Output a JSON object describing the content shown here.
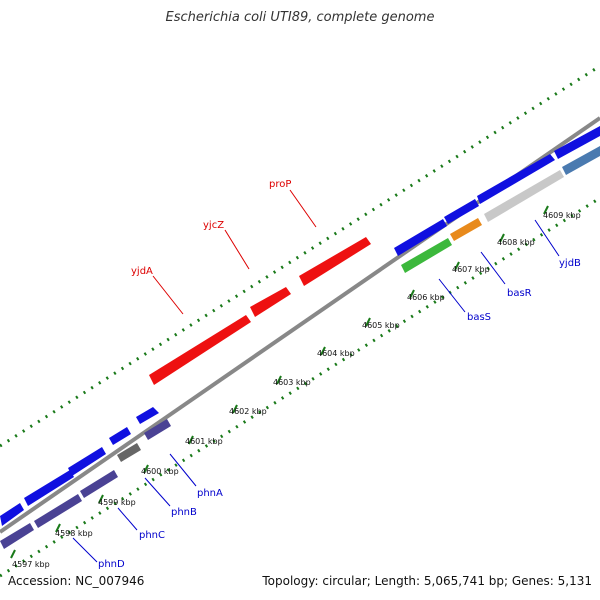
{
  "map": {
    "title": "Escherichia coli UTI89, complete genome",
    "accession": "Accession: NC_007946",
    "topology": "Topology: circular; Length: 5,065,741 bp; Genes: 5,131"
  },
  "colors": {
    "reverse_label": "#dd0000",
    "forward_label": "#0000cc",
    "gc_dots": "#1a7a1a",
    "backbone": "#888888"
  },
  "kbp_ticks": [
    "4597 kbp",
    "4598 kbp",
    "4599 kbp",
    "4600 kbp",
    "4601 kbp",
    "4602 kbp",
    "4603 kbp",
    "4604 kbp",
    "4605 kbp",
    "4606 kbp",
    "4607 kbp",
    "4608 kbp",
    "4609 kbp"
  ],
  "gene_labels": {
    "yjdA": "yjdA",
    "yjcZ": "yjcZ",
    "proP": "proP",
    "basS": "basS",
    "basR": "basR",
    "yjdB": "yjdB",
    "phnA": "phnA",
    "phnB": "phnB",
    "phnC": "phnC",
    "phnD": "phnD"
  }
}
